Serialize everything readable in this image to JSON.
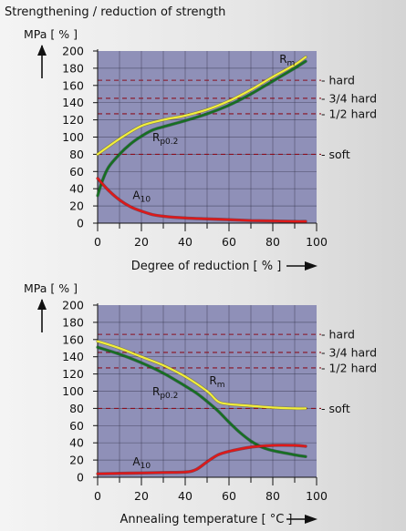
{
  "page": {
    "title": "Strengthening / reduction of strength"
  },
  "colors": {
    "plot_bg": "#8f90b8",
    "grid": "#2a2a40",
    "hardness_line": "#8a1020",
    "Rm": "#f2ee3a",
    "Rp0.2": "#157020",
    "A10": "#e01818"
  },
  "chart_data": [
    {
      "type": "line",
      "ylabel": "MPa [ % ]",
      "xlabel": "Degree of reduction [ % ]",
      "xlim": [
        0,
        100
      ],
      "ylim": [
        0,
        200
      ],
      "x_ticks": [
        0,
        20,
        40,
        60,
        80,
        100
      ],
      "y_ticks": [
        0,
        20,
        40,
        60,
        80,
        100,
        120,
        140,
        160,
        180,
        200
      ],
      "grid": true,
      "reference_lines": [
        {
          "label": "hard",
          "y": 166
        },
        {
          "label": "3/4 hard",
          "y": 145
        },
        {
          "label": "1/2 hard",
          "y": 127
        },
        {
          "label": "soft",
          "y": 80
        }
      ],
      "series": [
        {
          "name": "Rm",
          "label_main": "R",
          "label_sub": "m",
          "label_at": [
            83,
            186
          ],
          "x": [
            0,
            10,
            20,
            30,
            40,
            50,
            60,
            70,
            80,
            90,
            95
          ],
          "y": [
            80,
            98,
            113,
            120,
            125,
            132,
            142,
            155,
            170,
            184,
            193
          ]
        },
        {
          "name": "Rp0.2",
          "label_main": "R",
          "label_sub": "p0.2",
          "label_at": [
            25,
            95
          ],
          "x": [
            0,
            2,
            5,
            10,
            15,
            20,
            25,
            30,
            40,
            50,
            60,
            70,
            80,
            90,
            95
          ],
          "y": [
            32,
            48,
            65,
            80,
            92,
            101,
            108,
            112,
            119,
            127,
            137,
            150,
            165,
            180,
            188
          ]
        },
        {
          "name": "A10",
          "label_main": "A",
          "label_sub": "10",
          "label_at": [
            16,
            28
          ],
          "x": [
            0,
            5,
            10,
            15,
            20,
            25,
            30,
            40,
            50,
            60,
            70,
            80,
            90,
            95
          ],
          "y": [
            52,
            38,
            27,
            19,
            14,
            10,
            8,
            6,
            5,
            4,
            3,
            2.5,
            2,
            2
          ]
        }
      ]
    },
    {
      "type": "line",
      "ylabel": "MPa [ % ]",
      "xlabel": "Annealing temperature [ °C ]",
      "xlim": [
        0,
        100
      ],
      "ylim": [
        0,
        200
      ],
      "x_ticks": [
        0,
        20,
        40,
        60,
        80,
        100
      ],
      "y_ticks": [
        0,
        20,
        40,
        60,
        80,
        100,
        120,
        140,
        160,
        180,
        200
      ],
      "grid": true,
      "reference_lines": [
        {
          "label": "hard",
          "y": 166
        },
        {
          "label": "3/4 hard",
          "y": 145
        },
        {
          "label": "1/2 hard",
          "y": 127
        },
        {
          "label": "soft",
          "y": 80
        }
      ],
      "series": [
        {
          "name": "Rm",
          "label_main": "R",
          "label_sub": "m",
          "label_at": [
            51,
            108
          ],
          "x": [
            0,
            10,
            20,
            30,
            40,
            50,
            55,
            60,
            70,
            80,
            90,
            95
          ],
          "y": [
            158,
            150,
            140,
            130,
            117,
            100,
            88,
            85,
            83,
            81,
            80,
            80
          ]
        },
        {
          "name": "Rp0.2",
          "label_main": "R",
          "label_sub": "p0.2",
          "label_at": [
            25,
            95
          ],
          "x": [
            0,
            10,
            20,
            30,
            40,
            45,
            50,
            55,
            60,
            65,
            70,
            75,
            80,
            90,
            95
          ],
          "y": [
            151,
            143,
            133,
            121,
            106,
            98,
            88,
            77,
            64,
            52,
            42,
            35,
            31,
            26,
            24
          ]
        },
        {
          "name": "A10",
          "label_main": "A",
          "label_sub": "10",
          "label_at": [
            16,
            14
          ],
          "x": [
            0,
            10,
            20,
            30,
            40,
            45,
            50,
            55,
            60,
            70,
            80,
            90,
            95
          ],
          "y": [
            4,
            4.5,
            5,
            5.5,
            6,
            9,
            18,
            26,
            30,
            35,
            37,
            37,
            36
          ]
        }
      ]
    }
  ]
}
